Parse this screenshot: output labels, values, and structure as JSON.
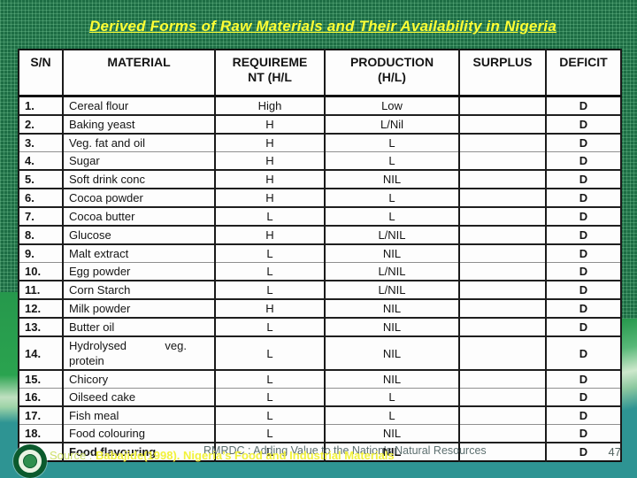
{
  "slide": {
    "title": "Derived Forms of Raw Materials and Their Availability in Nigeria",
    "page_number": "47",
    "footer_tagline": "RMRDC : Adding Value to the Nation's Natural Resources",
    "source_label": "Source : ",
    "source_text": "Babajide(1998). Nigeria’s Food and Industrial Materials",
    "logo_name": "rmrdc-emblem"
  },
  "table": {
    "headers": [
      {
        "label": "S/N"
      },
      {
        "label": "MATERIAL"
      },
      {
        "label": "REQUIREME\nNT (H/L"
      },
      {
        "label": "PRODUCTION\n(H/L)"
      },
      {
        "label": "SURPLUS"
      },
      {
        "label": "DEFICIT"
      }
    ],
    "rows": [
      {
        "sn": "1.",
        "material": "Cereal flour",
        "requirement": "High",
        "production": "Low",
        "surplus": "",
        "deficit": "D"
      },
      {
        "sn": "2.",
        "material": "Baking yeast",
        "requirement": "H",
        "production": "L/Nil",
        "surplus": "",
        "deficit": "D"
      },
      {
        "sn": "3.",
        "material": "Veg. fat and oil",
        "requirement": "H",
        "production": "L",
        "surplus": "",
        "deficit": "D"
      },
      {
        "sn": "4.",
        "material": "Sugar",
        "requirement": "H",
        "production": "L",
        "surplus": "",
        "deficit": "D"
      },
      {
        "sn": "5.",
        "material": "Soft drink conc",
        "requirement": "H",
        "production": "NIL",
        "surplus": "",
        "deficit": "D"
      },
      {
        "sn": "6.",
        "material": "Cocoa powder",
        "requirement": "H",
        "production": "L",
        "surplus": "",
        "deficit": "D"
      },
      {
        "sn": "7.",
        "material": "Cocoa butter",
        "requirement": "L",
        "production": "L",
        "surplus": "",
        "deficit": "D"
      },
      {
        "sn": "8.",
        "material": "Glucose",
        "requirement": "H",
        "production": "L/NIL",
        "surplus": "",
        "deficit": "D"
      },
      {
        "sn": "9.",
        "material": "Malt extract",
        "requirement": "L",
        "production": "NIL",
        "surplus": "",
        "deficit": "D"
      },
      {
        "sn": "10.",
        "material": "Egg powder",
        "requirement": "L",
        "production": "L/NIL",
        "surplus": "",
        "deficit": "D"
      },
      {
        "sn": "11.",
        "material": "Corn Starch",
        "requirement": "L",
        "production": "L/NIL",
        "surplus": "",
        "deficit": "D"
      },
      {
        "sn": "12.",
        "material": "Milk powder",
        "requirement": "H",
        "production": "NIL",
        "surplus": "",
        "deficit": "D"
      },
      {
        "sn": "13.",
        "material": "Butter oil",
        "requirement": "L",
        "production": "NIL",
        "surplus": "",
        "deficit": "D"
      },
      {
        "sn": "14.",
        "material": "Hydrolysed            veg.\nprotein",
        "requirement": "L",
        "production": "NIL",
        "surplus": "",
        "deficit": "D"
      },
      {
        "sn": "15.",
        "material": "Chicory",
        "requirement": "L",
        "production": "NIL",
        "surplus": "",
        "deficit": "D"
      },
      {
        "sn": "16.",
        "material": "Oilseed cake",
        "requirement": "L",
        "production": "L",
        "surplus": "",
        "deficit": "D"
      },
      {
        "sn": "17.",
        "material": "Fish meal",
        "requirement": "L",
        "production": "L",
        "surplus": "",
        "deficit": "D"
      },
      {
        "sn": "18.",
        "material": "Food colouring",
        "requirement": "L",
        "production": "NIL",
        "surplus": "",
        "deficit": "D"
      },
      {
        "sn": "19.",
        "material": "Food flavouring",
        "requirement": "L",
        "production": "NIL",
        "surplus": "",
        "deficit": "D"
      }
    ]
  },
  "colors": {
    "background_green": "#1d6d44",
    "title_yellow": "#ffff33",
    "teal_bar": "#2e9493",
    "table_border": "#111111",
    "source_yellow": "#f2f23c",
    "footer_gray": "#5c6f6f"
  }
}
